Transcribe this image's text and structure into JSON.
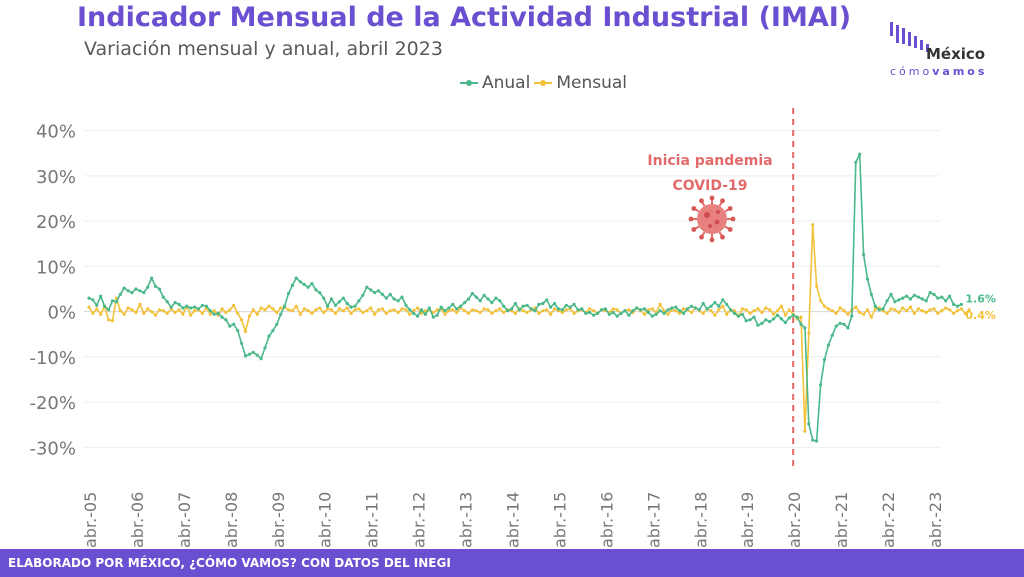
{
  "header": {
    "title": "Indicador Mensual de la Actividad Industrial (IMAI)",
    "subtitle": "Variación mensual y anual, abril 2023"
  },
  "logo": {
    "name": "México",
    "tagline_a": "cómo",
    "tagline_b": "vamos",
    "icon": "bars-logo-icon"
  },
  "footer": {
    "text": "ELABORADO POR MÉXICO, ¿CÓMO VAMOS? CON DATOS DEL INEGI"
  },
  "colors": {
    "anual": "#4bb88a",
    "mensual": "#f2c23c",
    "accent": "#6a4fd0",
    "annotation": "#e36a6a"
  },
  "chart_data": {
    "type": "line",
    "xlabel": "",
    "ylabel": "",
    "ylim": [
      -35,
      45
    ],
    "yticks": [
      40,
      30,
      20,
      10,
      0,
      -10,
      -20,
      -30
    ],
    "ytick_labels": [
      "40%",
      "30%",
      "20%",
      "10%",
      "0%",
      "-10%",
      "-20%",
      "-30%"
    ],
    "x_start": "abr.-05",
    "x_end": "abr.-23",
    "xtick_labels": [
      "abr.-05",
      "abr.-06",
      "abr.-07",
      "abr.-08",
      "abr.-09",
      "abr.-10",
      "abr.-11",
      "abr.-12",
      "abr.-13",
      "abr.-14",
      "abr.-15",
      "abr.-16",
      "abr.-17",
      "abr.-18",
      "abr.-19",
      "abr.-20",
      "abr.-21",
      "abr.-22",
      "abr.-23"
    ],
    "grid": true,
    "legend": "top",
    "annotation": {
      "line1": "Inicia pandemia",
      "line2": "COVID-19",
      "at": "abr.-20",
      "icon": "virus-icon"
    },
    "end_labels": {
      "anual": "1.6%",
      "mensual": "0.4%"
    },
    "series": [
      {
        "name": "Anual",
        "values": [
          3.0,
          2.6,
          1.4,
          3.4,
          1.2,
          0.4,
          2.4,
          2.2,
          3.8,
          5.2,
          4.6,
          4.2,
          5.0,
          4.6,
          4.2,
          5.4,
          7.4,
          5.6,
          5.0,
          3.2,
          2.2,
          1.0,
          2.0,
          1.6,
          0.8,
          1.2,
          0.8,
          1.0,
          0.6,
          1.4,
          1.2,
          0.2,
          -0.6,
          -0.4,
          -1.2,
          -1.8,
          -3.2,
          -2.8,
          -4.2,
          -7.0,
          -9.8,
          -9.4,
          -9.0,
          -9.6,
          -10.4,
          -8.0,
          -5.4,
          -4.2,
          -2.8,
          -0.6,
          1.2,
          4.0,
          5.8,
          7.4,
          6.6,
          6.0,
          5.4,
          6.2,
          4.8,
          4.2,
          3.0,
          1.2,
          2.8,
          1.4,
          2.2,
          3.0,
          1.8,
          1.0,
          1.2,
          2.4,
          3.6,
          5.4,
          4.8,
          4.2,
          4.6,
          3.8,
          3.0,
          3.8,
          2.8,
          2.4,
          3.2,
          1.4,
          0.4,
          -0.4,
          -1.0,
          0.4,
          -0.6,
          0.8,
          -1.2,
          -0.8,
          1.0,
          0.2,
          0.8,
          1.6,
          0.6,
          1.2,
          2.0,
          2.8,
          4.0,
          3.2,
          2.4,
          3.6,
          2.8,
          2.0,
          3.0,
          2.4,
          1.2,
          0.2,
          0.6,
          1.8,
          0.4,
          1.2,
          1.4,
          0.6,
          0.2,
          1.6,
          1.8,
          2.6,
          1.0,
          1.8,
          0.6,
          0.4,
          1.4,
          1.0,
          1.6,
          0.4,
          0.6,
          -0.4,
          -0.2,
          -0.8,
          -0.4,
          0.4,
          0.6,
          -0.6,
          -0.2,
          -1.0,
          -0.4,
          0.2,
          -0.8,
          0.2,
          0.8,
          0.4,
          0.6,
          -0.2,
          -1.0,
          -0.6,
          0.2,
          -0.4,
          0.4,
          0.8,
          1.0,
          0.2,
          -0.4,
          0.6,
          1.2,
          0.8,
          0.4,
          1.8,
          0.6,
          1.2,
          2.0,
          1.2,
          2.6,
          1.6,
          0.4,
          -0.4,
          -1.0,
          -0.6,
          -2.0,
          -1.8,
          -1.2,
          -3.0,
          -2.6,
          -1.8,
          -2.2,
          -1.6,
          -0.8,
          -1.6,
          -2.4,
          -1.4,
          -0.8,
          -1.2,
          -2.8,
          -3.6,
          -24.8,
          -28.4,
          -28.6,
          -16.2,
          -10.6,
          -7.4,
          -5.2,
          -3.2,
          -2.6,
          -2.8,
          -3.6,
          -1.0,
          33.0,
          34.8,
          12.6,
          7.2,
          3.8,
          1.2,
          0.4,
          0.6,
          2.4,
          3.8,
          2.2,
          2.6,
          3.0,
          3.4,
          2.8,
          3.6,
          3.2,
          2.8,
          2.4,
          4.2,
          3.8,
          3.0,
          3.2,
          2.4,
          3.4,
          1.6,
          1.2,
          1.6
        ]
      },
      {
        "name": "Mensual",
        "values": [
          1.0,
          -0.4,
          0.6,
          -0.6,
          1.2,
          -1.8,
          -2.0,
          3.0,
          0.2,
          -0.6,
          0.8,
          0.4,
          -0.2,
          1.6,
          -0.4,
          0.6,
          0.0,
          -0.8,
          0.4,
          0.2,
          -0.4,
          0.6,
          -0.2,
          0.4,
          -0.6,
          1.2,
          -0.8,
          0.2,
          0.4,
          -0.4,
          0.8,
          -0.6,
          0.2,
          -0.8,
          0.6,
          -0.2,
          0.4,
          1.4,
          -0.4,
          -1.8,
          -4.4,
          -1.0,
          0.4,
          -0.6,
          0.8,
          0.4,
          1.2,
          0.6,
          -0.2,
          0.8,
          1.0,
          0.4,
          0.2,
          1.2,
          -0.6,
          0.6,
          0.2,
          -0.4,
          0.4,
          0.8,
          -0.2,
          0.6,
          0.4,
          -0.4,
          0.6,
          0.2,
          0.8,
          -0.4,
          0.4,
          0.6,
          -0.2,
          0.2,
          0.8,
          -0.6,
          0.4,
          0.6,
          -0.4,
          0.2,
          0.4,
          -0.2,
          0.6,
          0.4,
          -0.6,
          0.2,
          0.8,
          -0.4,
          0.2,
          0.4,
          -0.2,
          0.4,
          0.6,
          -0.6,
          0.2,
          0.4,
          -0.2,
          0.8,
          0.2,
          -0.4,
          0.4,
          0.2,
          -0.2,
          0.6,
          0.4,
          -0.4,
          0.2,
          0.6,
          -0.2,
          0.4,
          0.2,
          -0.4,
          0.6,
          0.2,
          -0.2,
          0.4,
          0.8,
          -0.4,
          0.2,
          0.4,
          -0.6,
          0.6,
          0.2,
          -0.2,
          0.4,
          0.6,
          -0.4,
          0.2,
          0.4,
          -0.2,
          0.6,
          0.2,
          -0.4,
          0.4,
          0.2,
          -0.2,
          0.6,
          0.4,
          -0.4,
          0.2,
          0.4,
          -0.2,
          0.8,
          0.2,
          -0.6,
          0.4,
          0.6,
          -0.2,
          1.6,
          0.2,
          -0.6,
          0.4,
          0.2,
          -0.4,
          0.6,
          0.4,
          -0.2,
          0.8,
          0.2,
          -0.4,
          0.6,
          0.2,
          -0.8,
          0.4,
          1.2,
          -0.6,
          0.4,
          0.2,
          -1.0,
          0.6,
          0.4,
          -0.4,
          0.2,
          0.6,
          -0.2,
          0.8,
          0.4,
          -0.6,
          0.2,
          1.2,
          -0.8,
          0.4,
          -0.6,
          -1.6,
          -1.2,
          -26.4,
          -4.8,
          19.2,
          5.6,
          2.4,
          1.2,
          0.6,
          0.2,
          -0.4,
          0.8,
          0.2,
          -0.6,
          0.4,
          1.0,
          -0.2,
          -0.6,
          0.4,
          -1.2,
          0.6,
          0.8,
          0.2,
          -0.4,
          0.6,
          0.4,
          -0.2,
          0.8,
          0.2,
          1.0,
          -0.4,
          0.6,
          0.2,
          -0.2,
          0.4,
          0.6,
          -0.4,
          0.2,
          0.8,
          0.4,
          -0.4,
          0.2,
          0.6,
          -0.4,
          0.4
        ]
      }
    ]
  }
}
